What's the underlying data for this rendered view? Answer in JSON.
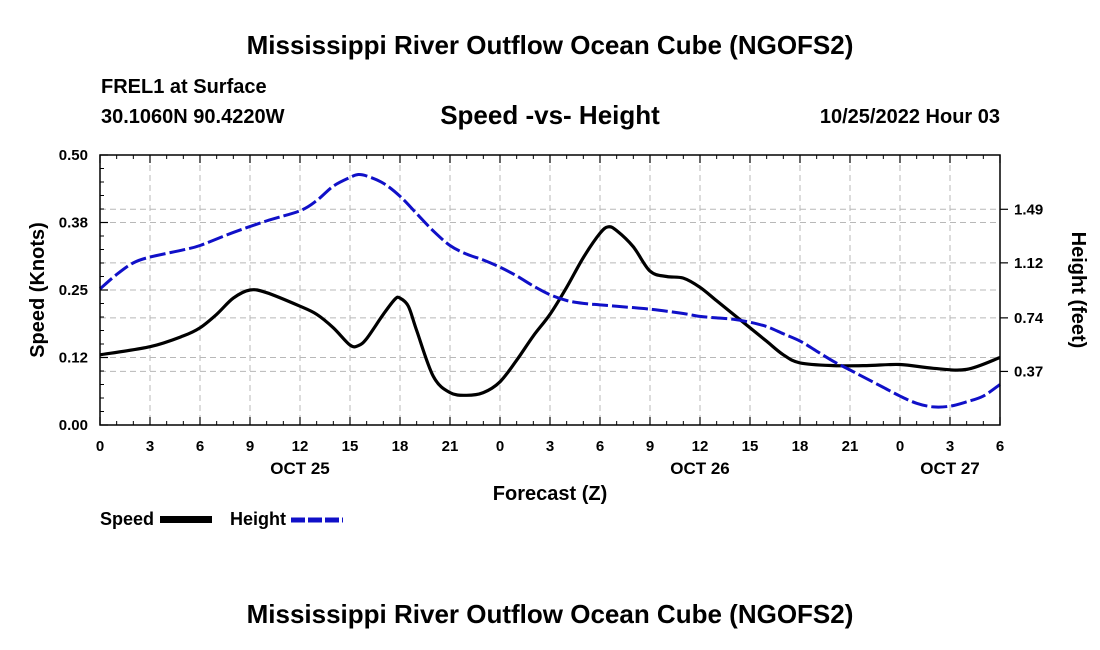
{
  "header": {
    "title": "Mississippi River Outflow Ocean Cube (NGOFS2)",
    "station": "FREL1 at Surface",
    "coords": "30.1060N  90.4220W",
    "datetime": "10/25/2022 Hour 03"
  },
  "footer": {
    "title": "Mississippi River Outflow Ocean Cube (NGOFS2)"
  },
  "legend": {
    "speed_label": "Speed",
    "height_label": "Height"
  },
  "colors": {
    "speed": "#000000",
    "height": "#1010c8",
    "grid": "#b8b8b8"
  },
  "chart_data": {
    "type": "line",
    "title": "Speed -vs- Height",
    "xlabel": "Forecast (Z)",
    "ylabel_left": "Speed (Knots)",
    "ylabel_right": "Height (feet)",
    "x_range_hours": [
      0,
      54
    ],
    "x_ticks": [
      {
        "hour": 0,
        "label": "0"
      },
      {
        "hour": 3,
        "label": "3"
      },
      {
        "hour": 6,
        "label": "6"
      },
      {
        "hour": 9,
        "label": "9"
      },
      {
        "hour": 12,
        "label": "12"
      },
      {
        "hour": 15,
        "label": "15"
      },
      {
        "hour": 18,
        "label": "18"
      },
      {
        "hour": 21,
        "label": "21"
      },
      {
        "hour": 24,
        "label": "0"
      },
      {
        "hour": 27,
        "label": "3"
      },
      {
        "hour": 30,
        "label": "6"
      },
      {
        "hour": 33,
        "label": "9"
      },
      {
        "hour": 36,
        "label": "12"
      },
      {
        "hour": 39,
        "label": "15"
      },
      {
        "hour": 42,
        "label": "18"
      },
      {
        "hour": 45,
        "label": "21"
      },
      {
        "hour": 48,
        "label": "0"
      },
      {
        "hour": 51,
        "label": "3"
      },
      {
        "hour": 54,
        "label": "6"
      }
    ],
    "date_labels": [
      {
        "hour": 12,
        "label": "OCT 25"
      },
      {
        "hour": 36,
        "label": "OCT 26"
      },
      {
        "hour": 51,
        "label": "OCT 27"
      }
    ],
    "y_left": {
      "range": [
        0,
        0.5
      ],
      "ticks": [
        {
          "value": 0,
          "label": "0.00"
        },
        {
          "value": 0.125,
          "label": "0.12"
        },
        {
          "value": 0.25,
          "label": "0.25"
        },
        {
          "value": 0.375,
          "label": "0.38"
        },
        {
          "value": 0.5,
          "label": "0.50"
        }
      ]
    },
    "y_right": {
      "range": [
        0.0,
        1.865
      ],
      "ticks": [
        {
          "value": 0.37,
          "label": "0.37"
        },
        {
          "value": 0.74,
          "label": "0.74"
        },
        {
          "value": 1.12,
          "label": "1.12"
        },
        {
          "value": 1.49,
          "label": "1.49"
        }
      ]
    },
    "series": [
      {
        "name": "Speed",
        "axis": "left",
        "style": "solid",
        "points": [
          [
            0,
            0.13
          ],
          [
            3,
            0.145
          ],
          [
            5,
            0.165
          ],
          [
            6,
            0.18
          ],
          [
            7,
            0.205
          ],
          [
            8,
            0.235
          ],
          [
            9,
            0.25
          ],
          [
            10,
            0.245
          ],
          [
            12,
            0.22
          ],
          [
            13,
            0.205
          ],
          [
            14,
            0.18
          ],
          [
            15,
            0.148
          ],
          [
            15.5,
            0.147
          ],
          [
            16,
            0.16
          ],
          [
            17,
            0.205
          ],
          [
            17.7,
            0.233
          ],
          [
            18,
            0.235
          ],
          [
            18.5,
            0.22
          ],
          [
            19,
            0.175
          ],
          [
            20,
            0.09
          ],
          [
            21,
            0.06
          ],
          [
            22,
            0.055
          ],
          [
            23,
            0.06
          ],
          [
            24,
            0.08
          ],
          [
            25,
            0.12
          ],
          [
            26,
            0.165
          ],
          [
            27,
            0.205
          ],
          [
            28,
            0.255
          ],
          [
            29,
            0.31
          ],
          [
            30,
            0.355
          ],
          [
            30.5,
            0.367
          ],
          [
            31,
            0.36
          ],
          [
            32,
            0.33
          ],
          [
            33,
            0.285
          ],
          [
            34,
            0.275
          ],
          [
            35,
            0.272
          ],
          [
            36,
            0.255
          ],
          [
            37,
            0.23
          ],
          [
            38,
            0.205
          ],
          [
            39,
            0.18
          ],
          [
            40,
            0.155
          ],
          [
            41,
            0.13
          ],
          [
            42,
            0.115
          ],
          [
            44,
            0.11
          ],
          [
            46,
            0.11
          ],
          [
            48,
            0.112
          ],
          [
            50,
            0.105
          ],
          [
            52,
            0.103
          ],
          [
            54,
            0.125
          ]
        ]
      },
      {
        "name": "Height",
        "axis": "right",
        "style": "dashed",
        "points": [
          [
            0,
            0.94
          ],
          [
            1,
            1.04
          ],
          [
            2,
            1.12
          ],
          [
            3,
            1.16
          ],
          [
            5,
            1.21
          ],
          [
            6,
            1.24
          ],
          [
            8,
            1.33
          ],
          [
            10,
            1.41
          ],
          [
            12,
            1.48
          ],
          [
            13,
            1.55
          ],
          [
            14,
            1.65
          ],
          [
            15,
            1.71
          ],
          [
            15.5,
            1.73
          ],
          [
            16,
            1.72
          ],
          [
            17,
            1.67
          ],
          [
            18,
            1.58
          ],
          [
            19,
            1.46
          ],
          [
            20,
            1.34
          ],
          [
            21,
            1.24
          ],
          [
            22,
            1.18
          ],
          [
            23,
            1.14
          ],
          [
            24,
            1.09
          ],
          [
            25,
            1.03
          ],
          [
            26,
            0.96
          ],
          [
            27,
            0.9
          ],
          [
            28,
            0.86
          ],
          [
            29,
            0.84
          ],
          [
            30,
            0.83
          ],
          [
            31,
            0.82
          ],
          [
            33,
            0.8
          ],
          [
            35,
            0.77
          ],
          [
            36,
            0.75
          ],
          [
            37,
            0.74
          ],
          [
            38,
            0.73
          ],
          [
            39,
            0.71
          ],
          [
            40,
            0.68
          ],
          [
            41,
            0.63
          ],
          [
            42,
            0.58
          ],
          [
            43,
            0.51
          ],
          [
            44,
            0.44
          ],
          [
            45,
            0.38
          ],
          [
            46,
            0.32
          ],
          [
            47,
            0.26
          ],
          [
            48,
            0.2
          ],
          [
            49,
            0.15
          ],
          [
            50,
            0.125
          ],
          [
            51,
            0.13
          ],
          [
            52,
            0.16
          ],
          [
            53,
            0.2
          ],
          [
            54,
            0.28
          ]
        ]
      }
    ]
  }
}
